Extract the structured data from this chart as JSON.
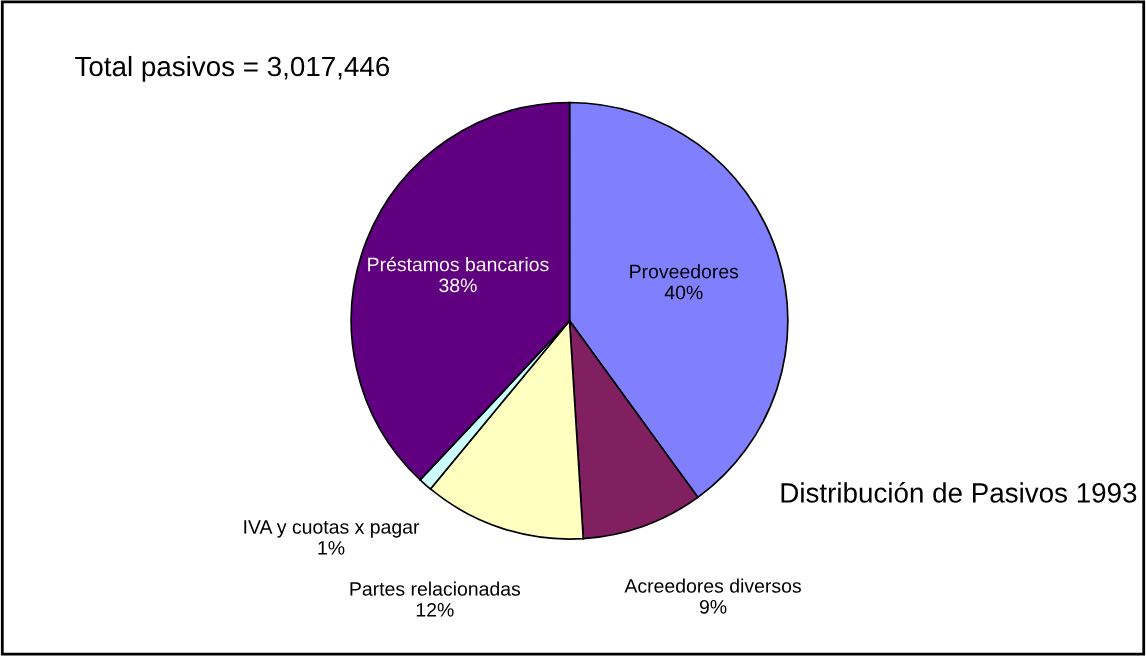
{
  "chart_data": {
    "type": "pie",
    "title": "Total pasivos = 3,017,446",
    "categories": [
      "Proveedores",
      "Acreedores diversos",
      "Partes relacionadas",
      "IVA y cuotas x pagar",
      "Préstamos bancarios"
    ],
    "values": [
      40,
      9,
      12,
      1,
      38
    ],
    "value_labels": [
      "40%",
      "9%",
      "12%",
      "1%",
      "38%"
    ],
    "colors": [
      "#8080ff",
      "#802060",
      "#ffffc0",
      "#ccffff",
      "#600080"
    ],
    "annotations": [
      "Distribución de Pasivos 1993"
    ],
    "legend": false
  }
}
